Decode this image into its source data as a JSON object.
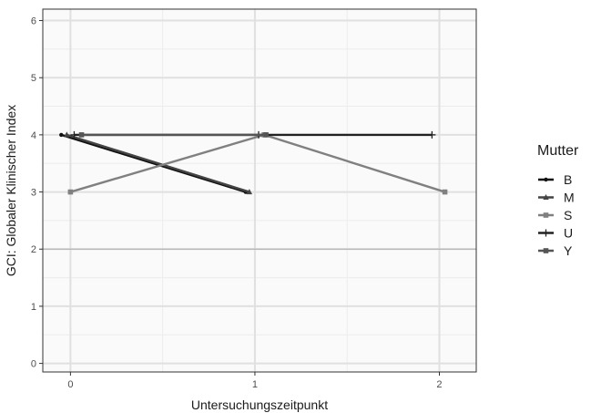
{
  "chart_data": {
    "type": "line",
    "xlabel": "Untersuchungszeitpunkt",
    "ylabel": "GCI: Globaler Klinischer Index",
    "xlim": [
      -0.15,
      2.2
    ],
    "ylim": [
      -0.15,
      6.2
    ],
    "x_ticks": [
      0,
      1,
      2
    ],
    "y_ticks": [
      0,
      1,
      2,
      3,
      4,
      5,
      6
    ],
    "reference_line_y": 2,
    "grid": true,
    "legend": {
      "title": "Mutter",
      "position": "right"
    },
    "series": [
      {
        "name": "B",
        "color": "#111111",
        "marker": "circle",
        "x": [
          -0.05,
          0.95
        ],
        "y": [
          4,
          3
        ]
      },
      {
        "name": "M",
        "color": "#444444",
        "marker": "triangle",
        "x": [
          -0.02,
          0.97
        ],
        "y": [
          4,
          3
        ]
      },
      {
        "name": "S",
        "color": "#808080",
        "marker": "square",
        "x": [
          0.0,
          1.05,
          2.03
        ],
        "y": [
          3,
          4,
          3
        ]
      },
      {
        "name": "U",
        "color": "#222222",
        "marker": "plus",
        "x": [
          0.02,
          1.02,
          1.96
        ],
        "y": [
          4,
          4,
          4
        ]
      },
      {
        "name": "Y",
        "color": "#555555",
        "marker": "square",
        "x": [
          0.06,
          1.06
        ],
        "y": [
          4,
          4
        ]
      }
    ]
  }
}
